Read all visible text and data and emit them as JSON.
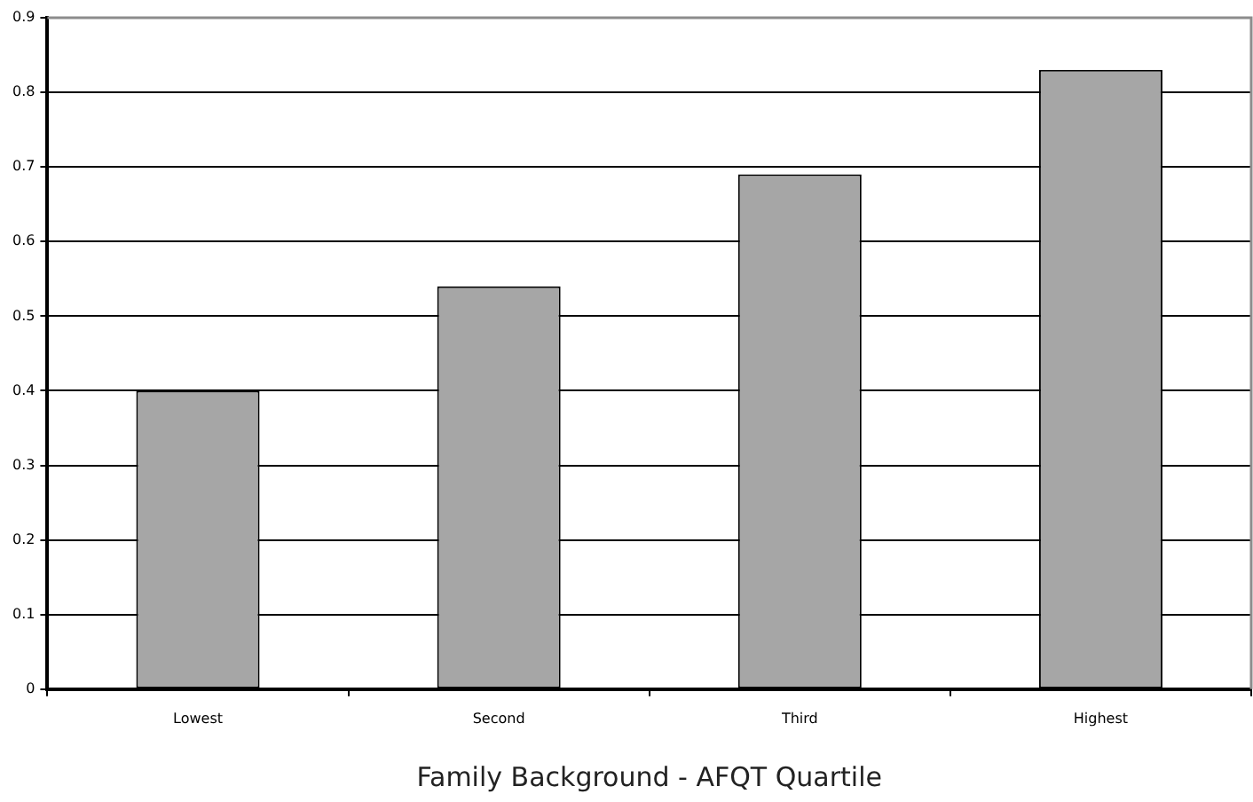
{
  "chart_data": {
    "type": "bar",
    "xlabel": "Family Background - AFQT Quartile",
    "categories": [
      "Lowest",
      "Second",
      "Third",
      "Highest"
    ],
    "values": [
      0.4,
      0.54,
      0.69,
      0.83
    ],
    "color": "#a6a6a6",
    "ylim": [
      0,
      0.9
    ],
    "yticks": [
      0,
      0.1,
      0.2,
      0.3,
      0.4,
      0.5,
      0.6,
      0.7,
      0.8,
      0.9
    ],
    "grid": "y",
    "legend": false
  }
}
